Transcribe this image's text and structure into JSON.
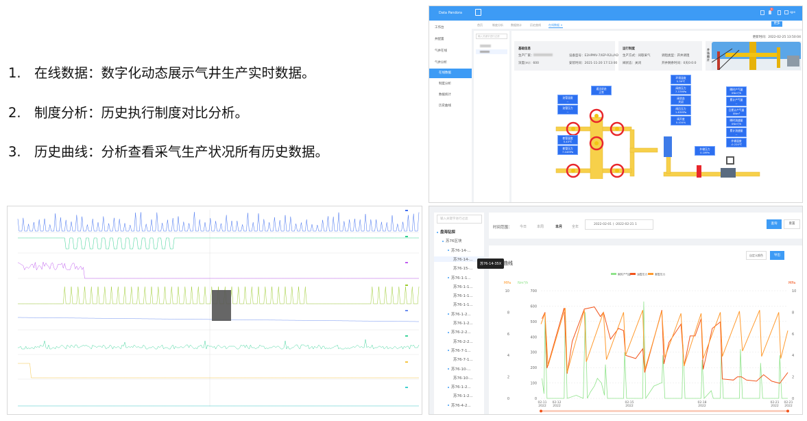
{
  "bullets": [
    {
      "num": "1.",
      "text": "在线数据：数字化动态展示气井生产实时数据。"
    },
    {
      "num": "2.",
      "text": "制度分析：历史执行制度对比分析。"
    },
    {
      "num": "3.",
      "text": "历史曲线：分析查看采气生产状况所有历史数据。"
    }
  ],
  "online": {
    "app_title": "Data Pandora",
    "user": "qps",
    "notification_count": "1",
    "sidebar": [
      {
        "label": "工作台",
        "icon": "desk-icon"
      },
      {
        "label": "井配置",
        "icon": "folder-icon"
      },
      {
        "label": "气井在线",
        "icon": "monitor-icon"
      },
      {
        "label": "气井分析",
        "icon": "gear-icon"
      },
      {
        "label": "在线数据",
        "icon": "dot-icon",
        "active": true
      },
      {
        "label": "制度分析",
        "icon": "dot-icon"
      },
      {
        "label": "数据统计",
        "icon": "dot-icon"
      },
      {
        "label": "历史曲线",
        "icon": "dot-icon"
      }
    ],
    "tabs": [
      "首页",
      "制度分析",
      "数据统计",
      "历史曲线",
      "在线数据 ×"
    ],
    "more_label": "更多",
    "search_placeholder": "输入关键字进行过滤",
    "update_time": "更新时间：2022-02-25 13:50:04",
    "basic": {
      "title": "基础信息",
      "maker": "生产厂家：",
      "model": "设备型号：E2HPMV-7/IEP-R2L/ADC",
      "depth": "深度(m)：600",
      "install": "安装时间：2021-11-20 17:13:00"
    },
    "regime": {
      "title": "运行制度",
      "mode": "生产方式：间歇采气",
      "type": "调阻类型：开井调阻",
      "valve": "阀状态：关闭",
      "remain": "开井剩余时间：0天0:0:0"
    },
    "photo_label": "井场图片",
    "readings": [
      {
        "k": "油管温度",
        "v": "--"
      },
      {
        "k": "油管压力",
        "v": "--"
      },
      {
        "k": "通讯状态",
        "v": "正常"
      },
      {
        "k": "套管温度",
        "v": "5.43℃"
      },
      {
        "k": "套管压力",
        "v": "7.04MPa"
      },
      {
        "k": "环境温度",
        "v": "5.39℃"
      },
      {
        "k": "阀前压力",
        "v": "7.37MPa"
      },
      {
        "k": "阀状态",
        "v": "关闭"
      },
      {
        "k": "阀后压力",
        "v": "1.83MPa"
      },
      {
        "k": "阀开度",
        "v": "0.434%"
      },
      {
        "k": "外输压力",
        "v": "0.1MPa"
      },
      {
        "k": "瞬时产气量",
        "v": "0Nm³/h"
      },
      {
        "k": "累计产气量",
        "v": "--"
      },
      {
        "k": "日累计产气量",
        "v": "0Nm³"
      },
      {
        "k": "瞬时流速量",
        "v": "0Nm³/h"
      },
      {
        "k": "累计流速量",
        "v": "--"
      },
      {
        "k": "外输温度",
        "v": "-0.220℃"
      }
    ],
    "colors": {
      "header": "#3d9bf5",
      "label": "#2c6ff0",
      "pipe": "#f7d04a",
      "valve": "#e8262b"
    }
  },
  "history": {
    "search_placeholder": "输入关键字进行过滤",
    "tree": [
      {
        "label": "盘海钻探",
        "level": 0
      },
      {
        "label": "苏76区块",
        "level": 1
      },
      {
        "label": "苏76-14-...",
        "level": 2
      },
      {
        "label": "苏76-14-...",
        "level": 3,
        "selected": true
      },
      {
        "label": "苏76-15-...",
        "level": 3
      },
      {
        "label": "苏76-1-1...",
        "level": 2
      },
      {
        "label": "苏76-1-1...",
        "level": 3
      },
      {
        "label": "苏76-1-1...",
        "level": 3
      },
      {
        "label": "苏76-1-1...",
        "level": 3
      },
      {
        "label": "苏76-1-2...",
        "level": 2
      },
      {
        "label": "苏76-1-2...",
        "level": 3
      },
      {
        "label": "苏76-2-2...",
        "level": 2
      },
      {
        "label": "苏76-2-2...",
        "level": 3
      },
      {
        "label": "苏76-7-1...",
        "level": 2
      },
      {
        "label": "苏76-7-1...",
        "level": 3
      },
      {
        "label": "苏76-10-...",
        "level": 2
      },
      {
        "label": "苏76-10-...",
        "level": 3
      },
      {
        "label": "苏76-1-2...",
        "level": 2
      },
      {
        "label": "苏76-1-2...",
        "level": 3
      },
      {
        "label": "苏76-4-2...",
        "level": 2
      }
    ],
    "tooltip": "苏76-14-35X",
    "range_label": "时间范围：",
    "ranges": [
      "今日",
      "本周",
      "本月",
      "全年"
    ],
    "active_range": "本月",
    "date_range": "2022-02-01 ( -2022-02-21 1",
    "query_label": "查询",
    "reset_label": "重置",
    "chart_title": "史曲线",
    "custom_color_label": "自定义颜色",
    "export_label": "导出"
  },
  "chart_data": {
    "type": "line",
    "legend": [
      "瞬时产气量",
      "油管压力",
      "套管压力"
    ],
    "legend_position": "top",
    "left_axis_units": [
      "MPa",
      "Nm³/h"
    ],
    "right_axis_unit": "MPa",
    "mpa_ticks": [
      "0",
      "2",
      "4",
      "6",
      "8",
      "10"
    ],
    "flow_ticks": [
      "0",
      "100",
      "200",
      "300",
      "400",
      "500",
      "600",
      "700"
    ],
    "mpa_range": [
      0,
      10
    ],
    "flow_range": [
      0,
      700
    ],
    "x_ticks": [
      [
        "02-11",
        "2022"
      ],
      [
        "02-12",
        "2022"
      ],
      [
        "02-15",
        "2022"
      ],
      [
        "02-18",
        "2022"
      ],
      [
        "02-21",
        "2022"
      ],
      [
        "02-21",
        "2022"
      ]
    ],
    "x_range": [
      "02-11 09:00",
      "02-21 14:00"
    ],
    "grid": "dashed horizontal",
    "series": [
      {
        "name": "瞬时产气量",
        "axis": "flow",
        "color": "#8fe38a",
        "points": [
          [
            "02-11 10:00",
            130
          ],
          [
            "02-11 12:00",
            30
          ],
          [
            "02-11 13:00",
            520
          ],
          [
            "02-11 15:00",
            0
          ],
          [
            "02-12 08:00",
            0
          ],
          [
            "02-12 09:00",
            540
          ],
          [
            "02-12 11:00",
            0
          ],
          [
            "02-12 20:00",
            20
          ],
          [
            "02-13 03:00",
            0
          ],
          [
            "02-13 05:00",
            560
          ],
          [
            "02-13 07:00",
            0
          ],
          [
            "02-13 10:00",
            40
          ],
          [
            "02-13 14:00",
            80
          ],
          [
            "02-13 17:00",
            130
          ],
          [
            "02-13 21:00",
            100
          ],
          [
            "02-14 00:00",
            20
          ],
          [
            "02-14 01:00",
            220
          ],
          [
            "02-14 03:00",
            0
          ],
          [
            "02-14 19:00",
            0
          ],
          [
            "02-14 20:00",
            300
          ],
          [
            "02-14 22:00",
            0
          ],
          [
            "02-15 14:00",
            0
          ],
          [
            "02-15 15:00",
            630
          ],
          [
            "02-15 17:00",
            0
          ],
          [
            "02-16 01:00",
            80
          ],
          [
            "02-16 08:00",
            100
          ],
          [
            "02-16 09:00",
            100
          ],
          [
            "02-16 10:00",
            280
          ],
          [
            "02-16 12:00",
            0
          ],
          [
            "02-17 05:00",
            0
          ],
          [
            "02-17 06:00",
            350
          ],
          [
            "02-17 08:00",
            0
          ],
          [
            "02-18 00:00",
            0
          ],
          [
            "02-18 01:00",
            250
          ],
          [
            "02-18 03:00",
            0
          ],
          [
            "02-18 10:00",
            50
          ],
          [
            "02-18 12:00",
            0
          ],
          [
            "02-18 19:00",
            0
          ],
          [
            "02-18 20:00",
            300
          ],
          [
            "02-18 22:00",
            0
          ],
          [
            "02-19 14:00",
            0
          ],
          [
            "02-19 15:00",
            320
          ],
          [
            "02-19 17:00",
            0
          ],
          [
            "02-20 10:00",
            0
          ],
          [
            "02-20 11:00",
            230
          ],
          [
            "02-20 13:00",
            0
          ],
          [
            "02-21 05:00",
            0
          ],
          [
            "02-21 06:00",
            280
          ],
          [
            "02-21 08:00",
            0
          ],
          [
            "02-21 14:00",
            0
          ]
        ]
      },
      {
        "name": "油管压力",
        "axis": "mpa",
        "color": "#f2541b",
        "points": [
          [
            "02-11 10:00",
            7.4
          ],
          [
            "02-11 13:00",
            8.0
          ],
          [
            "02-11 15:00",
            2.8
          ],
          [
            "02-12 08:00",
            8.4
          ],
          [
            "02-12 11:00",
            2.3
          ],
          [
            "02-12 16:00",
            5.3
          ],
          [
            "02-13 04:00",
            8.3
          ],
          [
            "02-13 14:00",
            8.5
          ],
          [
            "02-13 20:00",
            7.6
          ],
          [
            "02-13 23:00",
            8.0
          ],
          [
            "02-14 06:00",
            5.5
          ],
          [
            "02-14 14:00",
            6.5
          ],
          [
            "02-14 19:00",
            6.3
          ],
          [
            "02-14 21:00",
            4.0
          ],
          [
            "02-15 07:00",
            3.7
          ],
          [
            "02-15 14:00",
            4.6
          ],
          [
            "02-15 16:00",
            2.4
          ],
          [
            "02-16 09:00",
            8.2
          ],
          [
            "02-16 11:00",
            3.2
          ],
          [
            "02-16 16:00",
            5.2
          ],
          [
            "02-17 04:00",
            6.9
          ],
          [
            "02-17 07:00",
            3.0
          ],
          [
            "02-17 13:00",
            5.8
          ],
          [
            "02-17 18:00",
            5.8
          ],
          [
            "02-18 00:00",
            7.4
          ],
          [
            "02-18 02:00",
            2.7
          ],
          [
            "02-18 11:00",
            6.5
          ],
          [
            "02-18 19:00",
            7.1
          ],
          [
            "02-18 21:00",
            1.8
          ],
          [
            "02-19 08:00",
            1.7
          ],
          [
            "02-19 12:00",
            2.0
          ],
          [
            "02-19 16:00",
            2.0
          ],
          [
            "02-19 21:00",
            1.7
          ],
          [
            "02-20 07:00",
            1.6
          ],
          [
            "02-20 14:00",
            2.2
          ],
          [
            "02-20 22:00",
            1.6
          ],
          [
            "02-21 06:00",
            1.4
          ],
          [
            "02-21 14:00",
            2.4
          ]
        ]
      },
      {
        "name": "套管压力",
        "axis": "mpa",
        "color": "#ff9a2e",
        "points": [
          [
            "02-11 09:00",
            6.9
          ],
          [
            "02-11 13:00",
            7.9
          ],
          [
            "02-11 16:00",
            3.0
          ],
          [
            "02-12 09:00",
            8.4
          ],
          [
            "02-12 11:00",
            2.4
          ],
          [
            "02-13 04:00",
            8.2
          ],
          [
            "02-13 06:00",
            3.4
          ],
          [
            "02-13 23:00",
            8.0
          ],
          [
            "02-14 02:00",
            3.6
          ],
          [
            "02-14 19:00",
            8.0
          ],
          [
            "02-14 21:00",
            4.0
          ],
          [
            "02-15 14:00",
            8.2
          ],
          [
            "02-15 16:00",
            2.6
          ],
          [
            "02-16 09:00",
            8.1
          ],
          [
            "02-16 12:00",
            3.8
          ],
          [
            "02-17 04:00",
            7.9
          ],
          [
            "02-17 07:00",
            3.0
          ],
          [
            "02-18 00:00",
            7.9
          ],
          [
            "02-18 02:00",
            3.7
          ],
          [
            "02-18 19:00",
            8.0
          ],
          [
            "02-18 21:00",
            3.9
          ],
          [
            "02-19 14:00",
            8.1
          ],
          [
            "02-19 17:00",
            4.4
          ],
          [
            "02-20 10:00",
            8.2
          ],
          [
            "02-20 12:00",
            3.9
          ],
          [
            "02-21 05:00",
            8.0
          ],
          [
            "02-21 07:00",
            3.7
          ],
          [
            "02-21 14:00",
            6.3
          ]
        ]
      }
    ]
  }
}
